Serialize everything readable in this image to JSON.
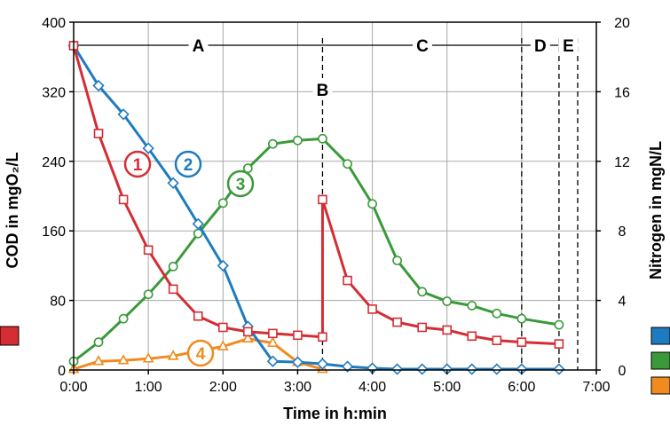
{
  "chart_data": {
    "type": "line",
    "xlabel": "Time in h:min",
    "ylabel_left": "COD in mgO₂/L",
    "ylabel_right": "Nitrogen in mgN/L",
    "x_ticks": [
      "0:00",
      "1:00",
      "2:00",
      "3:00",
      "4:00",
      "5:00",
      "6:00",
      "7:00"
    ],
    "xlim": [
      0,
      7
    ],
    "ylim_left": [
      0,
      400
    ],
    "ylim_right": [
      0,
      20
    ],
    "y_ticks_left": [
      "0",
      "80",
      "160",
      "240",
      "320",
      "400"
    ],
    "y_ticks_right": [
      "0",
      "4",
      "8",
      "12",
      "16",
      "20"
    ],
    "grid": true,
    "colors": {
      "red": "#d42d34",
      "blue": "#1f7bbf",
      "green": "#3a9a3a",
      "orange": "#ef8b1f"
    },
    "phases": [
      {
        "label": "A",
        "x_start": 0,
        "x_end": 3.333
      },
      {
        "label": "B",
        "x": 3.333
      },
      {
        "label": "C",
        "x_start": 3.333,
        "x_end": 6.0
      },
      {
        "label": "D",
        "x_start": 6.0,
        "x_end": 6.5
      },
      {
        "label": "E",
        "x_start": 6.5,
        "x_end": 6.75
      }
    ],
    "series": [
      {
        "name": "1",
        "axis": "left",
        "color": "#d42d34",
        "marker": "square",
        "x": [
          0,
          0.333,
          0.667,
          1.0,
          1.333,
          1.667,
          2.0,
          2.333,
          2.667,
          3.0,
          3.333,
          3.333,
          3.667,
          4.0,
          4.333,
          4.667,
          5.0,
          5.333,
          5.667,
          6.0,
          6.5
        ],
        "y": [
          373,
          272,
          196,
          138,
          93,
          62,
          49,
          44,
          42,
          40,
          38,
          196,
          103,
          70,
          55,
          49,
          46,
          39,
          34,
          32,
          30
        ]
      },
      {
        "name": "2",
        "axis": "right",
        "color": "#1f7bbf",
        "marker": "diamond",
        "x": [
          0,
          0.333,
          0.667,
          1.0,
          1.333,
          1.667,
          2.0,
          2.333,
          2.667,
          3.0,
          3.333,
          3.667,
          4.0,
          4.333,
          4.667,
          5.0,
          5.333,
          5.667,
          6.0,
          6.5
        ],
        "y": [
          18.65,
          16.35,
          14.7,
          12.75,
          10.75,
          8.4,
          6.0,
          2.5,
          0.5,
          0.45,
          0.35,
          0.2,
          0.1,
          0.05,
          0.05,
          0.05,
          0.05,
          0.05,
          0.05,
          0.05
        ]
      },
      {
        "name": "3",
        "axis": "right",
        "color": "#3a9a3a",
        "marker": "circle",
        "x": [
          0,
          0.333,
          0.667,
          1.0,
          1.333,
          1.667,
          2.0,
          2.333,
          2.667,
          3.0,
          3.333,
          3.667,
          4.0,
          4.333,
          4.667,
          5.0,
          5.333,
          5.667,
          6.0,
          6.5
        ],
        "y": [
          0.5,
          1.6,
          2.95,
          4.35,
          5.95,
          7.85,
          9.6,
          11.6,
          13.0,
          13.2,
          13.3,
          11.85,
          9.55,
          6.3,
          4.5,
          3.95,
          3.7,
          3.25,
          2.95,
          2.6
        ]
      },
      {
        "name": "4",
        "axis": "right",
        "color": "#ef8b1f",
        "marker": "triangle",
        "x": [
          0,
          0.333,
          0.667,
          1.0,
          1.333,
          1.667,
          2.0,
          2.333,
          2.667,
          3.0,
          3.333
        ],
        "y": [
          0.05,
          0.5,
          0.55,
          0.65,
          0.8,
          1.1,
          1.35,
          1.8,
          1.55,
          0.45,
          0.05
        ]
      }
    ]
  }
}
